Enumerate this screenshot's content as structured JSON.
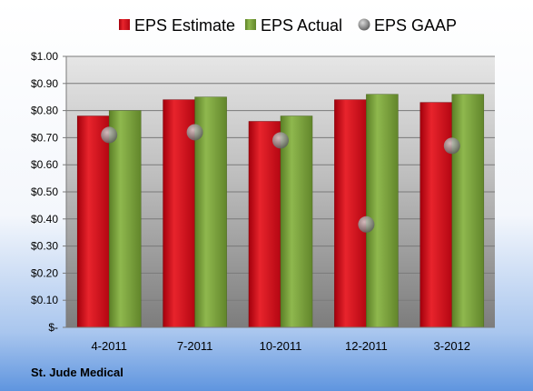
{
  "chart_data": {
    "type": "bar",
    "categories": [
      "4-2011",
      "7-2011",
      "10-2011",
      "12-2011",
      "3-2012"
    ],
    "series": [
      {
        "name": "EPS Estimate",
        "values": [
          0.78,
          0.84,
          0.76,
          0.84,
          0.83
        ],
        "color": "#d0111b"
      },
      {
        "name": "EPS Actual",
        "values": [
          0.8,
          0.85,
          0.78,
          0.86,
          0.86
        ],
        "color": "#7aa13a"
      },
      {
        "name": "EPS GAAP",
        "values": [
          0.71,
          0.72,
          0.69,
          0.38,
          0.67
        ],
        "color": "#9e9e9e",
        "marker": "circle"
      }
    ],
    "yticks": [
      "$-",
      "$0.10",
      "$0.20",
      "$0.30",
      "$0.40",
      "$0.50",
      "$0.60",
      "$0.70",
      "$0.80",
      "$0.90",
      "$1.00"
    ],
    "ylim": [
      0,
      1.0
    ],
    "grid": true,
    "legend": "top",
    "footer": "St. Jude Medical"
  }
}
